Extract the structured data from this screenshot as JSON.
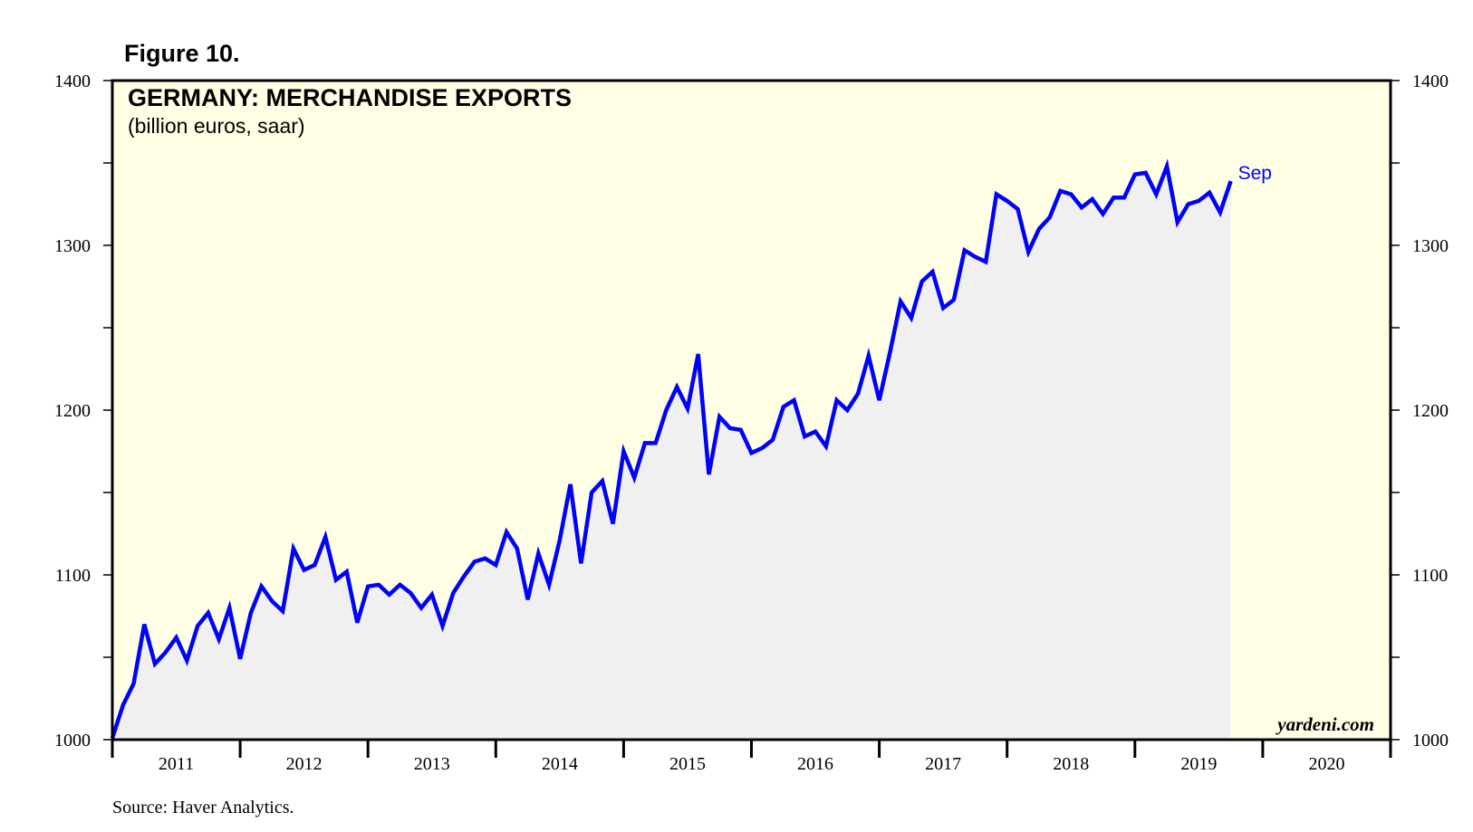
{
  "figure_label": "Figure 10.",
  "source": "Source: Haver Analytics.",
  "watermark": "yardeni.com",
  "chart_data": {
    "type": "line",
    "title": "GERMANY: MERCHANDISE EXPORTS",
    "subtitle": "(billion euros, saar)",
    "ylim": [
      1000,
      1400
    ],
    "yticks": [
      1000,
      1100,
      1200,
      1300,
      1400
    ],
    "y_minor_step": 50,
    "xlim": [
      2011,
      2021
    ],
    "year_labels": [
      "2011",
      "2012",
      "2013",
      "2014",
      "2015",
      "2016",
      "2017",
      "2018",
      "2019",
      "2020"
    ],
    "grid": false,
    "shaded_area_below_line": true,
    "end_label": "Sep",
    "colors": {
      "plot_bg": "#ffffe6",
      "fill": "#f0f0f0",
      "line": "#0000ff",
      "axis": "#000000"
    },
    "series": [
      {
        "start": "2011-01",
        "frequency": "monthly",
        "values": [
          1001,
          1021,
          1034,
          1070,
          1046,
          1053,
          1062,
          1048,
          1069,
          1077,
          1061,
          1080,
          1049,
          1077,
          1093,
          1084,
          1078,
          1116,
          1103,
          1106,
          1123,
          1097,
          1102,
          1071,
          1093,
          1094,
          1088,
          1094,
          1089,
          1080,
          1088,
          1069,
          1089,
          1099,
          1108,
          1110,
          1106,
          1126,
          1116,
          1085,
          1113,
          1094,
          1121,
          1155,
          1107,
          1150,
          1157,
          1131,
          1175,
          1159,
          1180,
          1180,
          1200,
          1214,
          1201,
          1234,
          1161,
          1196,
          1189,
          1188,
          1174,
          1177,
          1182,
          1202,
          1206,
          1184,
          1187,
          1178,
          1206,
          1200,
          1210,
          1233,
          1206,
          1235,
          1266,
          1256,
          1278,
          1284,
          1262,
          1267,
          1297,
          1293,
          1290,
          1331,
          1327,
          1322,
          1296,
          1310,
          1317,
          1333,
          1331,
          1323,
          1328,
          1319,
          1329,
          1329,
          1343,
          1344,
          1331,
          1348,
          1314,
          1325,
          1327,
          1332,
          1320,
          1339
        ]
      }
    ]
  }
}
